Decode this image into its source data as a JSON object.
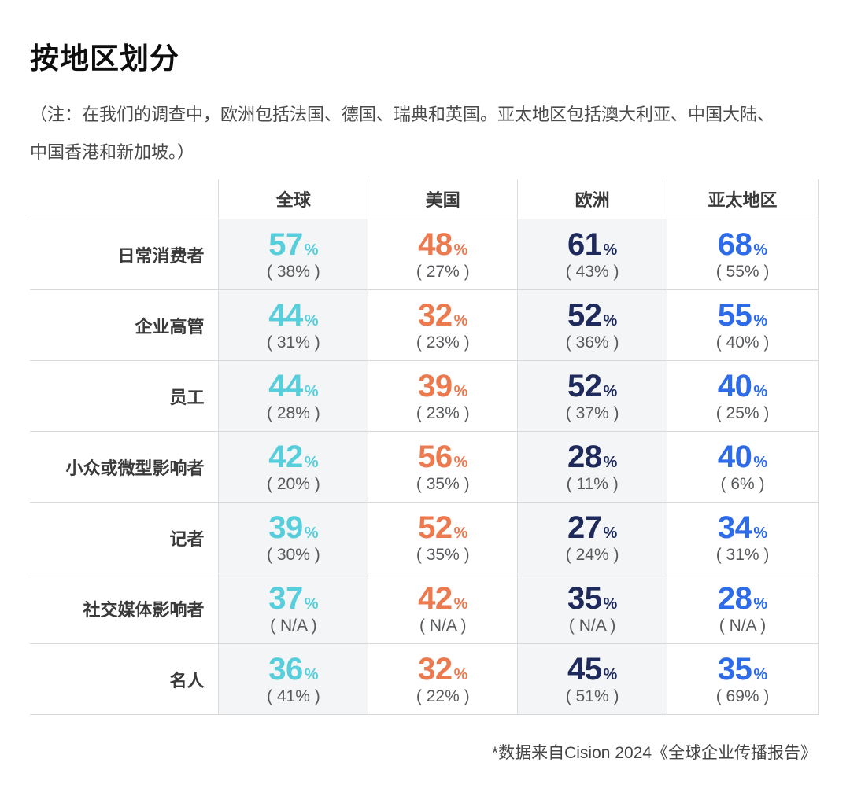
{
  "title": "按地区划分",
  "note": {
    "lines": [
      "（注：在我们的调查中，欧洲包括法国、德国、瑞典和英国。亚太地区包括澳大利亚、中国大陆、",
      "中国香港和新加坡。）"
    ]
  },
  "table": {
    "unit": "%",
    "columns": [
      {
        "label": "全球",
        "color": "#57CEDC",
        "shaded": true
      },
      {
        "label": "美国",
        "color": "#ED7A4F",
        "shaded": false
      },
      {
        "label": "欧洲",
        "color": "#1F2A5C",
        "shaded": true
      },
      {
        "label": "亚太地区",
        "color": "#2D6BE8",
        "shaded": false
      }
    ],
    "rows": [
      {
        "label": "日常消费者",
        "cells": [
          {
            "value": "57",
            "sub": "( 38% )"
          },
          {
            "value": "48",
            "sub": "( 27% )"
          },
          {
            "value": "61",
            "sub": "( 43% )"
          },
          {
            "value": "68",
            "sub": "( 55% )"
          }
        ]
      },
      {
        "label": "企业高管",
        "cells": [
          {
            "value": "44",
            "sub": "( 31% )"
          },
          {
            "value": "32",
            "sub": "( 23% )"
          },
          {
            "value": "52",
            "sub": "( 36% )"
          },
          {
            "value": "55",
            "sub": "( 40% )"
          }
        ]
      },
      {
        "label": "员工",
        "cells": [
          {
            "value": "44",
            "sub": "( 28% )"
          },
          {
            "value": "39",
            "sub": "( 23% )"
          },
          {
            "value": "52",
            "sub": "( 37% )"
          },
          {
            "value": "40",
            "sub": "( 25% )"
          }
        ]
      },
      {
        "label": "小众或微型影响者",
        "cells": [
          {
            "value": "42",
            "sub": "( 20% )"
          },
          {
            "value": "56",
            "sub": "( 35% )"
          },
          {
            "value": "28",
            "sub": "( 11% )"
          },
          {
            "value": "40",
            "sub": "( 6% )"
          }
        ]
      },
      {
        "label": "记者",
        "cells": [
          {
            "value": "39",
            "sub": "( 30% )"
          },
          {
            "value": "52",
            "sub": "( 35% )"
          },
          {
            "value": "27",
            "sub": "( 24% )"
          },
          {
            "value": "34",
            "sub": "( 31% )"
          }
        ]
      },
      {
        "label": "社交媒体影响者",
        "cells": [
          {
            "value": "37",
            "sub": "( N/A )"
          },
          {
            "value": "42",
            "sub": "( N/A )"
          },
          {
            "value": "35",
            "sub": "( N/A )"
          },
          {
            "value": "28",
            "sub": "( N/A )"
          }
        ]
      },
      {
        "label": "名人",
        "cells": [
          {
            "value": "36",
            "sub": "( 41% )"
          },
          {
            "value": "32",
            "sub": "( 22% )"
          },
          {
            "value": "45",
            "sub": "( 51% )"
          },
          {
            "value": "35",
            "sub": "( 69% )"
          }
        ]
      }
    ]
  },
  "footnote": "*数据来自Cision 2024《全球企业传播报告》",
  "chart_data": {
    "type": "table",
    "title": "按地区划分",
    "row_categories": [
      "日常消费者",
      "企业高管",
      "员工",
      "小众或微型影响者",
      "记者",
      "社交媒体影响者",
      "名人"
    ],
    "columns": [
      "全球",
      "美国",
      "欧洲",
      "亚太地区"
    ],
    "unit": "%",
    "series": [
      {
        "name": "全球",
        "values": [
          57,
          44,
          44,
          42,
          39,
          37,
          36
        ],
        "sub_values": [
          "38%",
          "31%",
          "28%",
          "20%",
          "30%",
          "N/A",
          "41%"
        ],
        "color": "#57CEDC"
      },
      {
        "name": "美国",
        "values": [
          48,
          32,
          39,
          56,
          52,
          42,
          32
        ],
        "sub_values": [
          "27%",
          "23%",
          "23%",
          "35%",
          "35%",
          "N/A",
          "22%"
        ],
        "color": "#ED7A4F"
      },
      {
        "name": "欧洲",
        "values": [
          61,
          52,
          52,
          28,
          27,
          35,
          45
        ],
        "sub_values": [
          "43%",
          "36%",
          "37%",
          "11%",
          "24%",
          "N/A",
          "51%"
        ],
        "color": "#1F2A5C"
      },
      {
        "name": "亚太地区",
        "values": [
          68,
          55,
          40,
          40,
          34,
          28,
          35
        ],
        "sub_values": [
          "55%",
          "40%",
          "25%",
          "6%",
          "31%",
          "N/A",
          "69%"
        ],
        "color": "#2D6BE8"
      }
    ]
  }
}
